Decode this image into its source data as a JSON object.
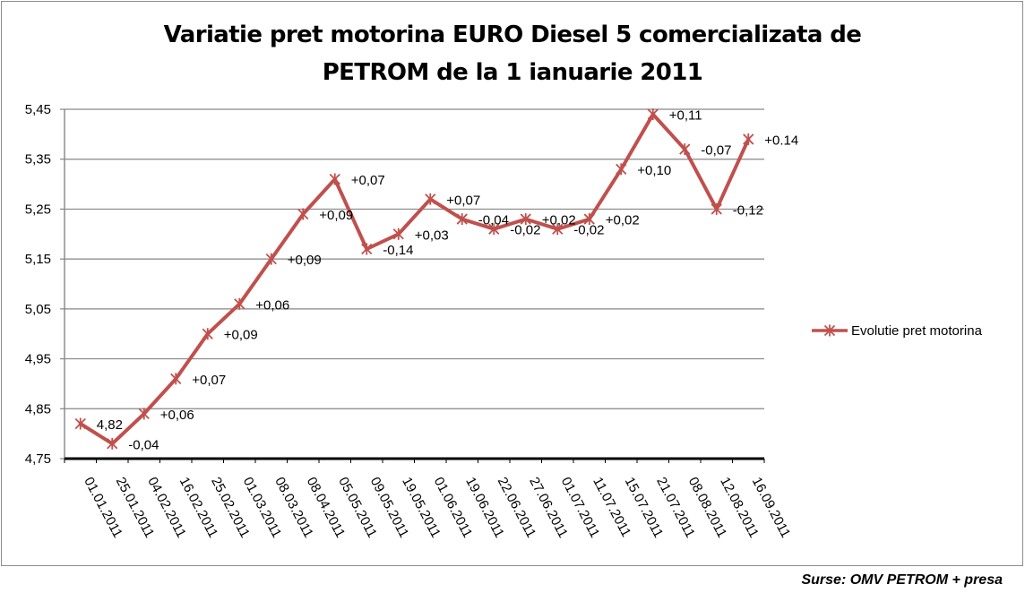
{
  "chart_data": {
    "type": "line",
    "title_lines": [
      "Variatie pret motorina EURO Diesel 5 comercializata de",
      "PETROM de la 1 ianuarie 2011"
    ],
    "categories": [
      "01.01.2011",
      "25.01.2011",
      "04.02.2011",
      "16.02.2011",
      "25.02.2011",
      "01.03.2011",
      "08.03.2011",
      "08.04.2011",
      "05.05.2011",
      "09.05.2011",
      "19.05.2011",
      "01.06.2011",
      "19.06.2011",
      "22.06.2011",
      "27.06.2011",
      "01.07.2011",
      "11.07.2011",
      "15.07.2011",
      "21.07.2011",
      "08.08.2011",
      "12.08.2011",
      "16.09.2011"
    ],
    "series": [
      {
        "name": "Evolutie pret motorina",
        "color": "#c0504d",
        "values": [
          4.82,
          4.78,
          4.84,
          4.91,
          5.0,
          5.06,
          5.15,
          5.24,
          5.31,
          5.17,
          5.2,
          5.27,
          5.23,
          5.21,
          5.23,
          5.21,
          5.23,
          5.33,
          5.44,
          5.37,
          5.25,
          5.39
        ],
        "labels": [
          "4,82",
          "-0,04",
          "+0,06",
          "+0,07",
          "+0,09",
          "+0,06",
          "+0,09",
          "+0,09",
          "+0,07",
          "-0,14",
          "+0,03",
          "+0,07",
          "-0,04",
          "-0,02",
          "+0,02",
          "-0,02",
          "+0,02",
          "+0,10",
          "+0,11",
          "-0,07",
          "-0,12",
          "+0.14"
        ]
      }
    ],
    "ylim": [
      4.75,
      5.45
    ],
    "yticks": [
      "4,75",
      "4,85",
      "4,95",
      "5,05",
      "5,15",
      "5,25",
      "5,35",
      "5,45"
    ],
    "ytick_values": [
      4.75,
      4.85,
      4.95,
      5.05,
      5.15,
      5.25,
      5.35,
      5.45
    ],
    "grid": true,
    "legend_position": "right",
    "xlabel": "",
    "ylabel": ""
  },
  "source": "Surse: OMV PETROM + presa"
}
